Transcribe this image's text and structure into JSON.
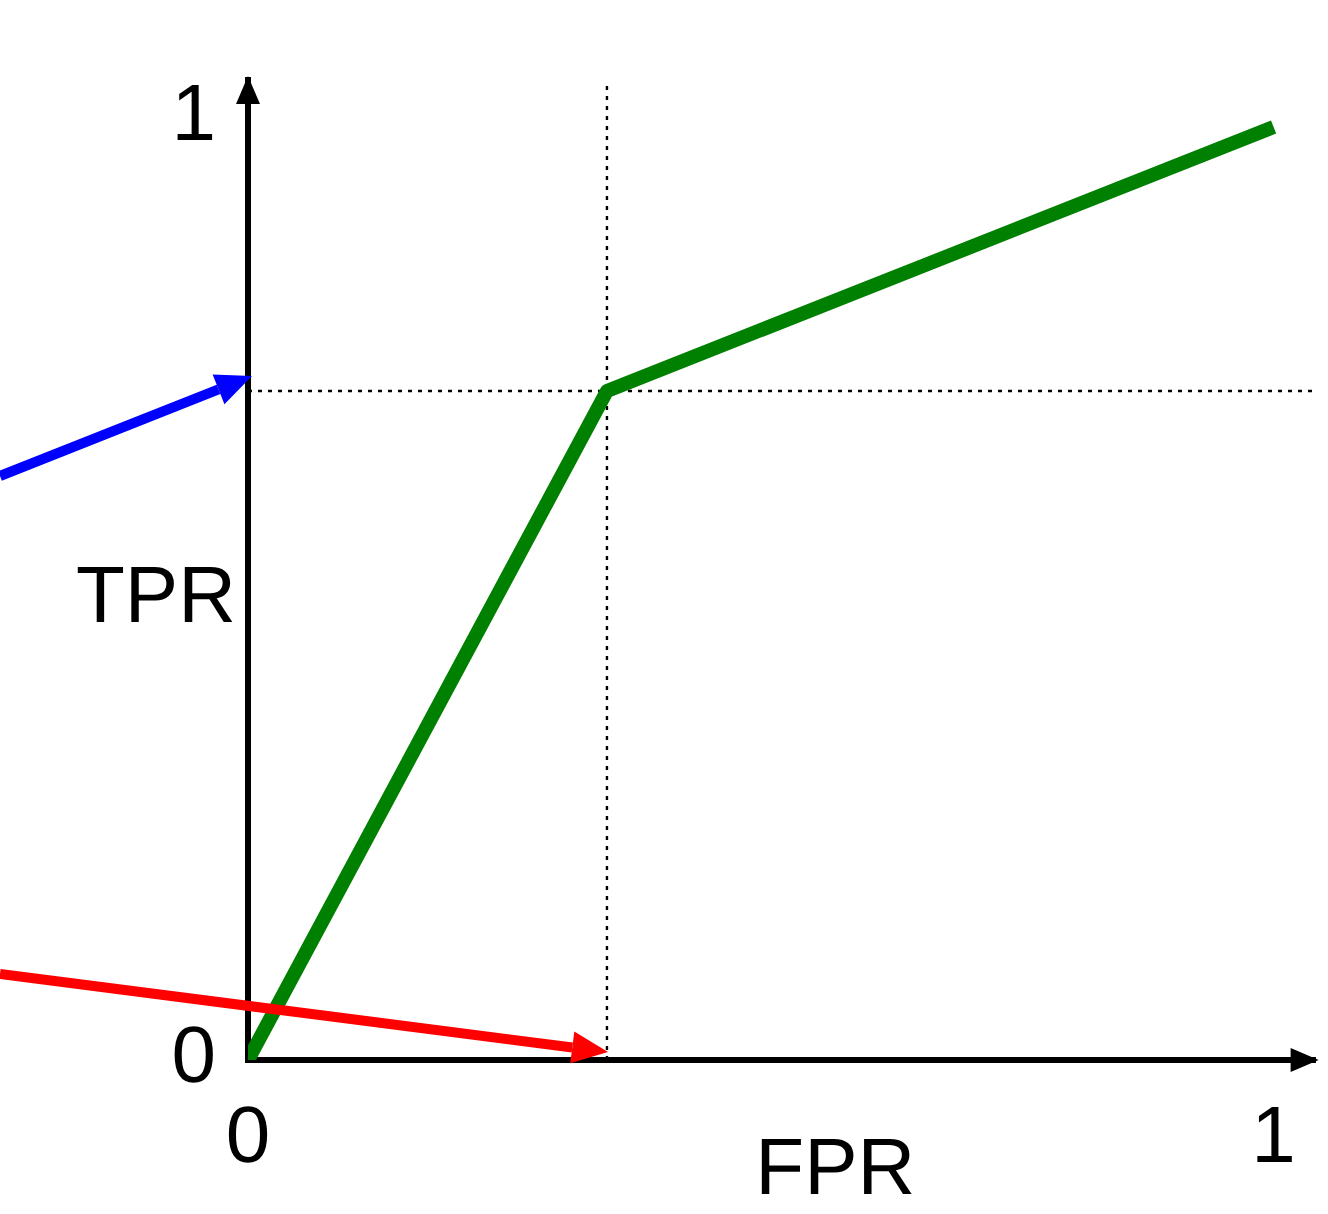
{
  "chart_data": {
    "type": "line",
    "xlabel": "FPR",
    "ylabel": "TPR",
    "series": [
      {
        "color": "#008000",
        "x": [
          0,
          0.35,
          1
        ],
        "values": [
          0,
          0.71,
          0.99
        ]
      }
    ],
    "xlim": [
      0,
      1.04
    ],
    "ylim": [
      0,
      1.04
    ],
    "xticks": [
      0,
      1
    ],
    "yticks": [
      0,
      1
    ],
    "ref_lines": [
      {
        "axis": "x",
        "value": 0.35,
        "color": "#000000",
        "line_style": "dotted"
      },
      {
        "axis": "y",
        "value": 0.71,
        "color": "#000000",
        "line_style": "dotted"
      }
    ],
    "grid": false,
    "legend": false,
    "marker": "none",
    "line_style": "solid"
  }
}
